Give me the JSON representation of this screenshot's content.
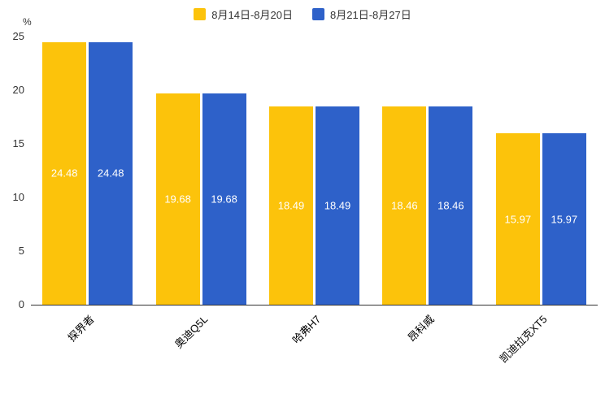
{
  "chart_data": {
    "type": "bar",
    "title": "",
    "unit_label": "%",
    "categories": [
      "探界者",
      "奥迪Q5L",
      "哈弗H7",
      "昂科威",
      "凯迪拉克XT5"
    ],
    "series": [
      {
        "name": "8月14日-8月20日",
        "color": "#FCC30B",
        "values": [
          24.48,
          19.68,
          18.49,
          18.46,
          15.97
        ]
      },
      {
        "name": "8月21日-8月27日",
        "color": "#2E61C9",
        "values": [
          24.48,
          19.68,
          18.49,
          18.46,
          15.97
        ]
      }
    ],
    "y_ticks": [
      0,
      5,
      10,
      15,
      20,
      25
    ],
    "ylim": [
      0,
      25
    ],
    "grid": false,
    "legend_position": "top",
    "bar_label_color": "#ffffff",
    "bar_labels": [
      [
        "24.48",
        "19.68",
        "18.49",
        "18.46",
        "15.97"
      ],
      [
        "24.48",
        "19.68",
        "18.49",
        "18.46",
        "15.97"
      ]
    ]
  }
}
